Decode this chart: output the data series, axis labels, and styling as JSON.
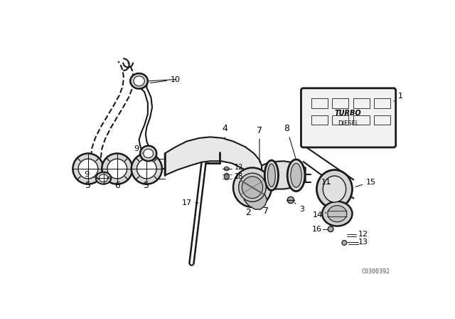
{
  "background_color": "#ffffff",
  "watermark": "C0300392",
  "fig_width": 6.4,
  "fig_height": 4.48,
  "dpi": 100,
  "lc": "#1a1a1a"
}
